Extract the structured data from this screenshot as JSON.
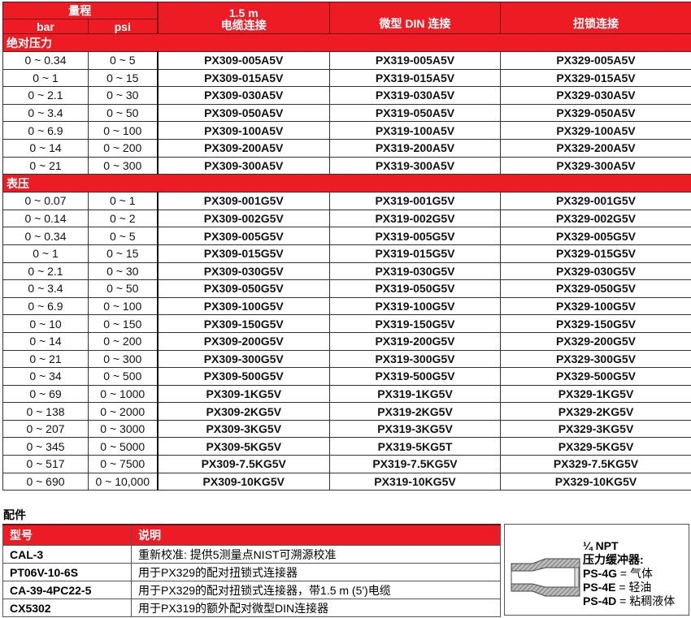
{
  "header": {
    "range": "量程",
    "bar": "bar",
    "psi": "psi",
    "cable_line1": "1.5 m",
    "cable_line2": "电缆连接",
    "din": "微型 DIN 连接",
    "twist": "扭锁连接"
  },
  "groups": [
    {
      "label": "绝对压力",
      "rows": [
        [
          "0 ~ 0.34",
          "0 ~ 5",
          "PX309-005A5V",
          "PX319-005A5V",
          "PX329-005A5V"
        ],
        [
          "0 ~ 1",
          "0 ~ 15",
          "PX309-015A5V",
          "PX319-015A5V",
          "PX329-015A5V"
        ],
        [
          "0 ~ 2.1",
          "0 ~ 30",
          "PX309-030A5V",
          "PX319-030A5V",
          "PX329-030A5V"
        ],
        [
          "0 ~ 3.4",
          "0 ~ 50",
          "PX309-050A5V",
          "PX319-050A5V",
          "PX329-050A5V"
        ],
        [
          "0 ~ 6.9",
          "0 ~ 100",
          "PX309-100A5V",
          "PX319-100A5V",
          "PX329-100A5V"
        ],
        [
          "0 ~ 14",
          "0 ~ 200",
          "PX309-200A5V",
          "PX319-200A5V",
          "PX329-200A5V"
        ],
        [
          "0 ~ 21",
          "0 ~ 300",
          "PX309-300A5V",
          "PX319-300A5V",
          "PX329-300A5V"
        ]
      ]
    },
    {
      "label": "表压",
      "rows": [
        [
          "0 ~ 0.07",
          "0 ~ 1",
          "PX309-001G5V",
          "PX319-001G5V",
          "PX329-001G5V"
        ],
        [
          "0 ~ 0.14",
          "0 ~ 2",
          "PX309-002G5V",
          "PX319-002G5V",
          "PX329-002G5V"
        ],
        [
          "0 ~ 0.34",
          "0 ~ 5",
          "PX309-005G5V",
          "PX319-005G5V",
          "PX329-005G5V"
        ],
        [
          "0 ~ 1",
          "0 ~ 15",
          "PX309-015G5V",
          "PX319-015G5V",
          "PX329-015G5V"
        ],
        [
          "0 ~ 2.1",
          "0 ~ 30",
          "PX309-030G5V",
          "PX319-030G5V",
          "PX329-030G5V"
        ],
        [
          "0 ~ 3.4",
          "0 ~ 50",
          "PX309-050G5V",
          "PX319-050G5V",
          "PX329-050G5V"
        ],
        [
          "0 ~ 6.9",
          "0 ~ 100",
          "PX309-100G5V",
          "PX319-100G5V",
          "PX329-100G5V"
        ],
        [
          "0 ~ 10",
          "0 ~ 150",
          "PX309-150G5V",
          "PX319-150G5V",
          "PX329-150G5V"
        ],
        [
          "0 ~ 14",
          "0 ~ 200",
          "PX309-200G5V",
          "PX319-200G5V",
          "PX329-200G5V"
        ],
        [
          "0 ~ 21",
          "0 ~ 300",
          "PX309-300G5V",
          "PX319-300G5V",
          "PX329-300G5V"
        ],
        [
          "0 ~ 34",
          "0 ~ 500",
          "PX309-500G5V",
          "PX319-500G5V",
          "PX329-500G5V"
        ],
        [
          "0 ~ 69",
          "0 ~ 1000",
          "PX309-1KG5V",
          "PX319-1KG5V",
          "PX329-1KG5V"
        ],
        [
          "0 ~ 138",
          "0 ~ 2000",
          "PX309-2KG5V",
          "PX319-2KG5V",
          "PX329-2KG5V"
        ],
        [
          "0 ~ 207",
          "0 ~ 3000",
          "PX309-3KG5V",
          "PX319-3KG5V",
          "PX329-3KG5V"
        ],
        [
          "0 ~ 345",
          "0 ~ 5000",
          "PX309-5KG5V",
          "PX319-5KG5T",
          "PX329-5KG5V"
        ],
        [
          "0 ~ 517",
          "0 ~ 7500",
          "PX309-7.5KG5V",
          "PX319-7.5KG5V",
          "PX329-7.5KG5V"
        ],
        [
          "0 ~ 690",
          "0 ~ 10,000",
          "PX309-10KG5V",
          "PX319-10KG5V",
          "PX329-10KG5V"
        ]
      ]
    }
  ],
  "accessories": {
    "title": "配件",
    "col_model": "型号",
    "col_desc": "说明",
    "rows": [
      [
        "CAL-3",
        "重新校准: 提供5测量点NIST可溯源校准"
      ],
      [
        "PT06V-10-6S",
        "用于PX329的配对扭锁式连接器"
      ],
      [
        "CA-39-4PC22-5",
        "用于PX329的配对扭锁式连接器，带1.5 m (5')电缆"
      ],
      [
        "CX5302",
        "用于PX319的额外配对微型DIN连接器"
      ]
    ]
  },
  "snubber": {
    "line1": "¼ NPT",
    "line2": "压力缓冲器:",
    "items": [
      {
        "model": "PS-4G",
        "desc": " = 气体"
      },
      {
        "model": "PS-4E",
        "desc": " = 轻油"
      },
      {
        "model": "PS-4D",
        "desc": " = 粘稠液体"
      }
    ]
  },
  "colors": {
    "accent": "#ED1C24"
  }
}
